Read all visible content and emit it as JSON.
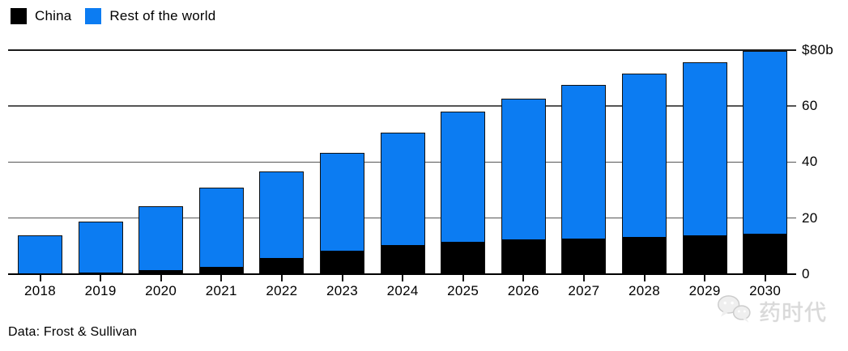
{
  "legend": {
    "items": [
      {
        "label": "China",
        "color": "#000000"
      },
      {
        "label": "Rest of the world",
        "color": "#0c7cf2"
      }
    ]
  },
  "footer": {
    "source": "Data: Frost & Sullivan"
  },
  "watermark": {
    "text": "药时代",
    "icon": "wechat-icon"
  },
  "chart_data": {
    "type": "bar",
    "stacked": true,
    "title": "",
    "xlabel": "",
    "ylabel": "",
    "categories": [
      "2018",
      "2019",
      "2020",
      "2021",
      "2022",
      "2023",
      "2024",
      "2025",
      "2026",
      "2027",
      "2028",
      "2029",
      "2030"
    ],
    "series": [
      {
        "name": "China",
        "color": "#000000",
        "values": [
          0.1,
          0.3,
          1.0,
          2.2,
          5.5,
          8.0,
          10.0,
          11.3,
          12.0,
          12.5,
          13.1,
          13.5,
          14.2
        ]
      },
      {
        "name": "Rest of the world",
        "color": "#0c7cf2",
        "values": [
          13.8,
          18.4,
          23.2,
          28.7,
          31.0,
          35.3,
          40.4,
          46.6,
          50.5,
          55.0,
          58.4,
          62.1,
          65.3
        ]
      }
    ],
    "totals": [
      13.9,
      18.7,
      24.2,
      30.9,
      36.5,
      43.3,
      50.4,
      57.9,
      62.5,
      67.5,
      71.5,
      75.6,
      79.5
    ],
    "ylim": [
      0,
      80
    ],
    "yticks": [
      {
        "value": 0,
        "label": "0"
      },
      {
        "value": 20,
        "label": "20"
      },
      {
        "value": 40,
        "label": "40"
      },
      {
        "value": 60,
        "label": "60"
      },
      {
        "value": 80,
        "label": "$80b"
      }
    ],
    "grid": "horizontal",
    "legend_position": "top-left",
    "axis_side": "right"
  }
}
